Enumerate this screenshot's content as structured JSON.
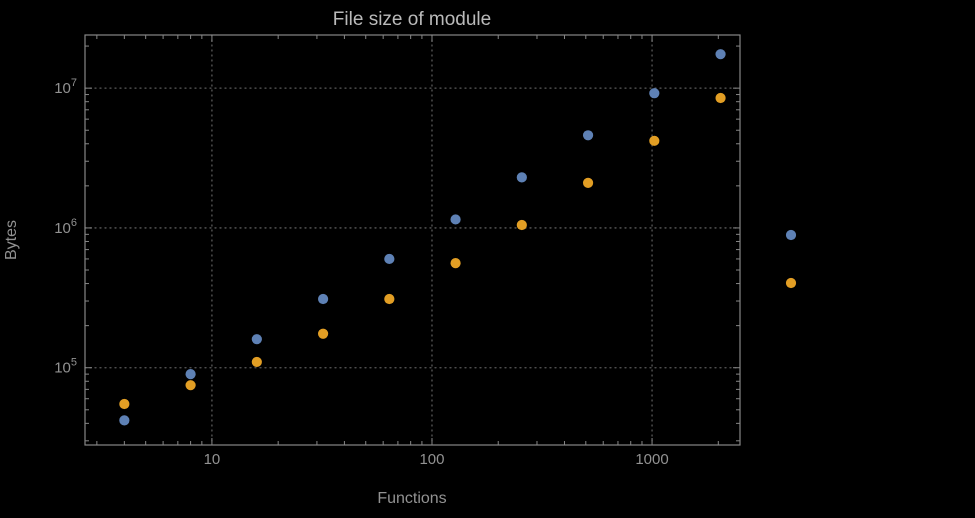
{
  "chart_data": {
    "type": "scatter",
    "title": "File size of module",
    "xlabel": "Functions",
    "ylabel": "Bytes",
    "x_scale": "log",
    "y_scale": "log",
    "x_domain": [
      2.65,
      2510
    ],
    "y_domain": [
      28000,
      24000000
    ],
    "grid": "dotted-major-lines",
    "x_ticks": [
      {
        "value": 10,
        "label": "10"
      },
      {
        "value": 100,
        "label": "100"
      },
      {
        "value": 1000,
        "label": "1000"
      }
    ],
    "y_ticks": [
      {
        "value": 100000,
        "base": "10",
        "exp": "5"
      },
      {
        "value": 1000000,
        "base": "10",
        "exp": "6"
      },
      {
        "value": 10000000,
        "base": "10",
        "exp": "7"
      }
    ],
    "series": [
      {
        "name": "series-1-blue",
        "color": "#5e81b5",
        "x": [
          4,
          8,
          16,
          32,
          64,
          128,
          256,
          512,
          1024,
          2048
        ],
        "y": [
          42000,
          90000,
          160000,
          310000,
          600000,
          1150000,
          2300000,
          4600000,
          9200000,
          17500000
        ]
      },
      {
        "name": "series-2-orange",
        "color": "#e29e24",
        "x": [
          4,
          8,
          16,
          32,
          64,
          128,
          256,
          512,
          1024,
          2048
        ],
        "y": [
          55000,
          75000,
          110000,
          175000,
          310000,
          560000,
          1050000,
          2100000,
          4200000,
          8500000
        ]
      }
    ],
    "legend": {
      "labels_visible": false,
      "markers": [
        {
          "series_index": 0,
          "color": "#5e81b5"
        },
        {
          "series_index": 1,
          "color": "#e29e24"
        }
      ]
    },
    "style": {
      "background": "#000000",
      "frame_color": "#878787",
      "grid_color": "#5a5a5a",
      "text_color": "#929292",
      "title_color": "#bababa"
    }
  }
}
